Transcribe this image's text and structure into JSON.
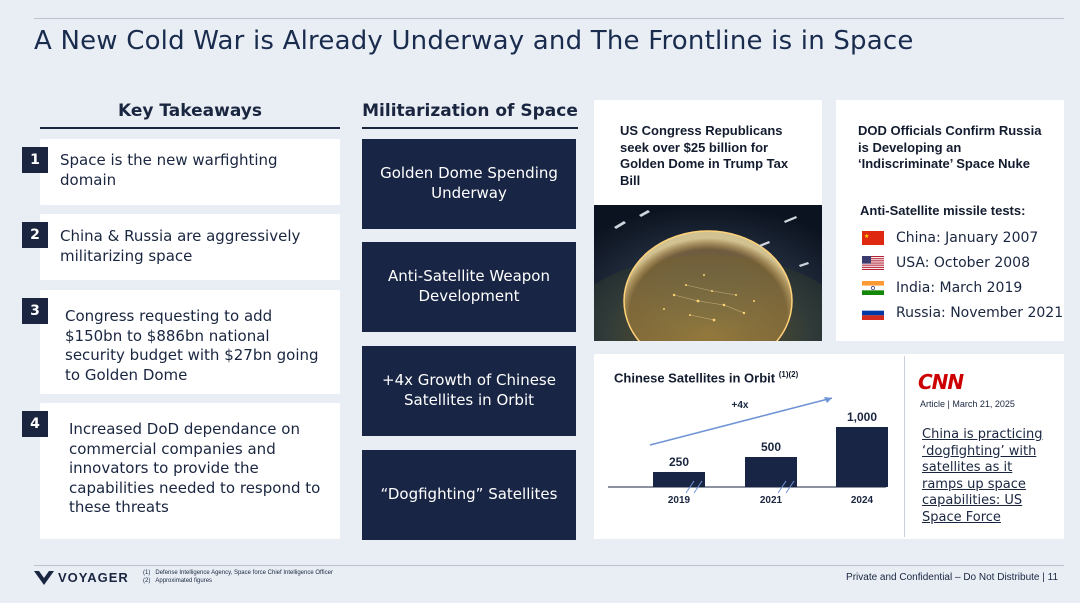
{
  "title": "A New Cold War is Already Underway and The Frontline is in Space",
  "takeaways": {
    "heading": "Key Takeaways",
    "items": [
      {
        "num": "1",
        "text": "Space is the new warfighting domain"
      },
      {
        "num": "2",
        "text": "China & Russia are aggressively militarizing space"
      },
      {
        "num": "3",
        "text": "Congress requesting to add $150bn to $886bn national security budget with $27bn going to Golden Dome"
      },
      {
        "num": "4",
        "text": "Increased DoD dependance on commercial companies and innovators to provide the capabilities needed to respond to these threats"
      }
    ]
  },
  "militarization": {
    "heading": "Militarization of Space",
    "items": [
      "Golden Dome Spending Underway",
      "Anti-Satellite Weapon Development",
      "+4x Growth of Chinese Satellites in Orbit",
      "“Dogfighting” Satellites"
    ]
  },
  "news1": {
    "headline": "US Congress Republicans seek over $25 billion for Golden Dome in Trump Tax Bill"
  },
  "news2": {
    "headline": "DOD Officials Confirm Russia is Developing an ‘Indiscriminate’ Space Nuke",
    "tests_title": "Anti-Satellite missile tests:",
    "tests": [
      {
        "flag": "china",
        "label": "China: January 2007"
      },
      {
        "flag": "usa",
        "label": "USA: October 2008"
      },
      {
        "flag": "india",
        "label": "India: March 2019"
      },
      {
        "flag": "russia",
        "label": "Russia: November 2021"
      }
    ]
  },
  "chart_data": {
    "type": "bar",
    "title": "Chinese Satellites in Orbit",
    "title_sup": "(1)(2)",
    "categories": [
      "2019",
      "2021",
      "2024"
    ],
    "values": [
      250,
      500,
      1000
    ],
    "value_labels": [
      "250",
      "500",
      "1,000"
    ],
    "annotation": "+4x",
    "ylim": [
      0,
      1000
    ],
    "grid": false,
    "bar_color": "#182544"
  },
  "cnn": {
    "logo": "CNN",
    "meta": "Article | March 21, 2025",
    "link": "China is practicing ‘dogfighting’ with satellites as it ramps up space capabilities: US Space Force"
  },
  "footer": {
    "logo": "VOYAGER",
    "footnotes": [
      {
        "num": "(1)",
        "text": "Defense Intelligence Agency, Space force Chief Intelligence Officer"
      },
      {
        "num": "(2)",
        "text": "Approximated figures"
      }
    ],
    "right": "Private and Confidential – Do Not Distribute | 11"
  },
  "colors": {
    "navy": "#182544",
    "cnn_red": "#cc0000",
    "background": "#e9eef5"
  }
}
